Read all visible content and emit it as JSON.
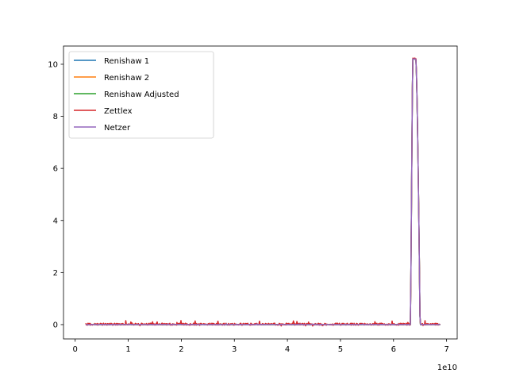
{
  "chart_data": {
    "type": "line",
    "title": "",
    "xlabel": "",
    "ylabel": "",
    "x_offset_label": "1e10",
    "xlim": [
      -0.22,
      7.2
    ],
    "ylim": [
      -0.55,
      10.7
    ],
    "x_ticks": [
      0,
      1,
      2,
      3,
      4,
      5,
      6,
      7
    ],
    "x_tick_labels": [
      "0",
      "1",
      "2",
      "3",
      "4",
      "5",
      "6",
      "7"
    ],
    "y_ticks": [
      0,
      2,
      4,
      6,
      8,
      10
    ],
    "y_tick_labels": [
      "0",
      "2",
      "4",
      "6",
      "8",
      "10"
    ],
    "grid": false,
    "legend_position": "upper-left",
    "pulse": {
      "x_start": 6.32,
      "x_rise_end": 6.36,
      "x_fall_start": 6.42,
      "x_end": 6.5,
      "peak": 10.2
    },
    "x_range": [
      0.2,
      6.88
    ],
    "series": [
      {
        "name": "Renishaw 1",
        "color": "#1f77b4",
        "noise": 0.03,
        "seed": 11
      },
      {
        "name": "Renishaw 2",
        "color": "#ff7f0e",
        "noise": 0.04,
        "seed": 23
      },
      {
        "name": "Renishaw Adjusted",
        "color": "#2ca02c",
        "noise": 0.03,
        "seed": 37
      },
      {
        "name": "Zettlex",
        "color": "#d62728",
        "noise": 0.22,
        "seed": 41
      },
      {
        "name": "Netzer",
        "color": "#9467bd",
        "noise": 0.04,
        "seed": 53
      }
    ]
  }
}
